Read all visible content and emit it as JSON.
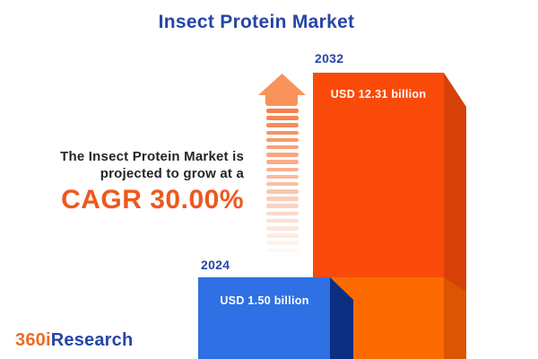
{
  "header": {
    "title": "Insect Protein Market"
  },
  "growth": {
    "line1": "The Insect Protein Market is",
    "line2": "projected to grow at a",
    "cagr": "CAGR 30.00%"
  },
  "logo": {
    "prefix": "360i",
    "suffix": "Research"
  },
  "chart_data": {
    "type": "bar",
    "title": "Insect Protein Market",
    "categories": [
      "2024",
      "2032"
    ],
    "values": [
      1.5,
      12.31
    ],
    "unit": "USD billion",
    "value_labels": [
      "USD 1.50 billion",
      "USD 12.31 billion"
    ],
    "cagr_percent": 30.0,
    "annotation": "The Insect Protein Market is projected to grow at a CAGR 30.00%",
    "legend": "none",
    "axes": "none",
    "bar_colors": [
      "#2F70E4",
      "#FA4A09"
    ]
  },
  "colors": {
    "accent_blue": "#2745A7",
    "accent_orange": "#F0571D",
    "text_dark": "#23252B",
    "bar_2024_front": "#2F70E4",
    "bar_2024_side": "#0C2E80",
    "bar_2032_front_upper": "#FA4A09",
    "bar_2032_front_lower": "#FC6B00",
    "bar_2032_side_upper": "#D64109",
    "bar_2032_side_lower": "#DC5502",
    "arrow_orange": "#F8935B",
    "stripe_orange": "#F4814B",
    "logo_orange": "#F26A21",
    "logo_blue": "#2745A7",
    "background": "#FFFFFF"
  }
}
